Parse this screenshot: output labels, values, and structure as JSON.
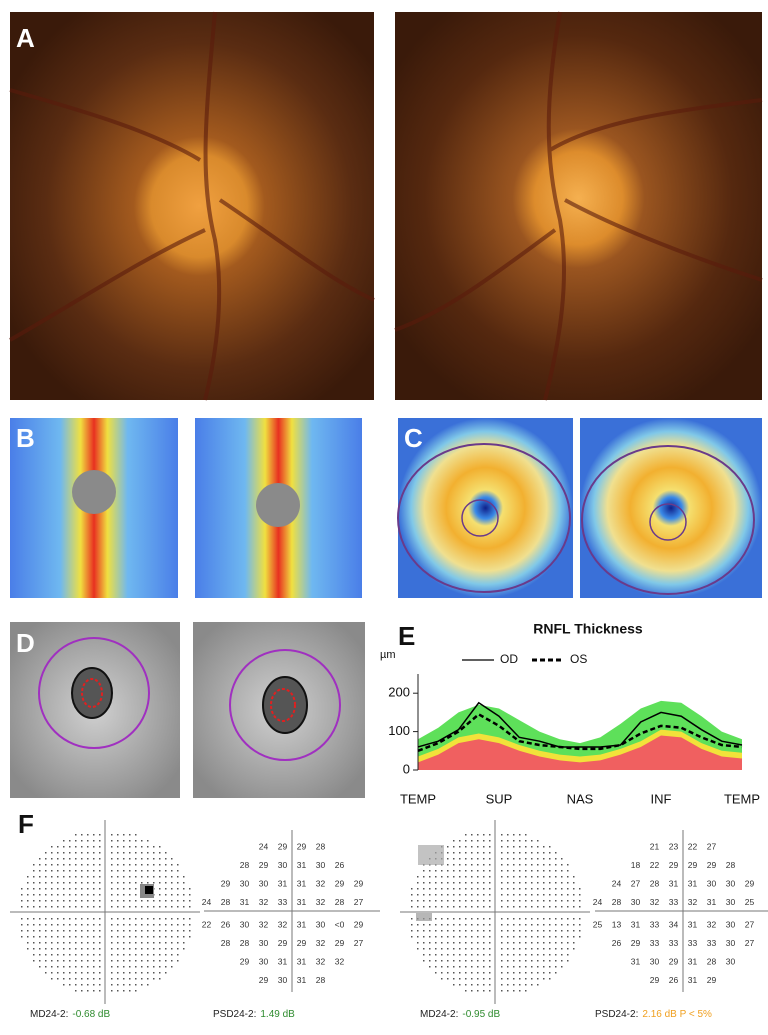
{
  "panels": [
    "A",
    "B",
    "C",
    "D",
    "E",
    "F"
  ],
  "chart_data": {
    "type": "line",
    "title": "RNFL Thickness",
    "y_unit": "µm",
    "categories": [
      "TEMP",
      null,
      null,
      null,
      "SUP",
      null,
      null,
      null,
      "NAS",
      null,
      null,
      null,
      "INF",
      null,
      null,
      null,
      "TEMP"
    ],
    "ylim": [
      0,
      250
    ],
    "yticks": [
      0,
      100,
      200
    ],
    "bands": [
      {
        "color": "#5ee05a",
        "upper": [
          80,
          110,
          150,
          170,
          160,
          130,
          100,
          80,
          70,
          85,
          120,
          160,
          180,
          175,
          140,
          100,
          80
        ]
      },
      {
        "color": "#f2e23a",
        "upper": [
          35,
          55,
          85,
          95,
          85,
          65,
          50,
          40,
          35,
          40,
          55,
          75,
          105,
          100,
          70,
          50,
          45
        ]
      },
      {
        "color": "#f06060",
        "upper": [
          20,
          40,
          70,
          80,
          70,
          50,
          35,
          25,
          20,
          25,
          40,
          60,
          90,
          85,
          55,
          35,
          30
        ]
      }
    ],
    "series": [
      {
        "name": "OD",
        "color": "#000000",
        "dash": false,
        "values": [
          60,
          75,
          105,
          175,
          140,
          85,
          75,
          60,
          60,
          60,
          65,
          125,
          150,
          140,
          105,
          75,
          65
        ]
      },
      {
        "name": "OS",
        "color": "#000000",
        "dash": true,
        "values": [
          50,
          70,
          100,
          145,
          115,
          75,
          65,
          60,
          55,
          55,
          65,
          95,
          115,
          110,
          85,
          65,
          60
        ]
      }
    ]
  },
  "visual_fields": [
    {
      "grid": [
        [
          24,
          29,
          29,
          28
        ],
        [
          28,
          29,
          30,
          31,
          30,
          26
        ],
        [
          29,
          30,
          30,
          31,
          31,
          32,
          29,
          29
        ],
        [
          24,
          28,
          31,
          32,
          33,
          31,
          32,
          28,
          27
        ],
        [
          22,
          26,
          30,
          32,
          32,
          31,
          30,
          "<0",
          29
        ],
        [
          28,
          28,
          30,
          29,
          29,
          32,
          29,
          27
        ],
        [
          29,
          30,
          31,
          31,
          32,
          32
        ],
        [
          29,
          30,
          31,
          28
        ]
      ],
      "md_label": "MD24-2:",
      "md_value": "-0.68 dB",
      "psd_label": "PSD24-2:",
      "psd_value": "1.49 dB"
    },
    {
      "grid": [
        [
          21,
          23,
          22,
          27
        ],
        [
          18,
          22,
          29,
          29,
          29,
          28
        ],
        [
          24,
          27,
          28,
          31,
          31,
          30,
          30,
          29
        ],
        [
          24,
          28,
          30,
          32,
          33,
          32,
          31,
          30,
          25
        ],
        [
          25,
          13,
          31,
          33,
          34,
          31,
          32,
          30,
          27
        ],
        [
          26,
          29,
          33,
          33,
          33,
          33,
          30,
          27
        ],
        [
          31,
          30,
          29,
          31,
          28,
          30
        ],
        [
          29,
          26,
          31,
          29
        ]
      ],
      "md_label": "MD24-2:",
      "md_value": "-0.95 dB",
      "psd_label": "PSD24-2:",
      "psd_value": "2.16 dB P < 5%"
    }
  ]
}
